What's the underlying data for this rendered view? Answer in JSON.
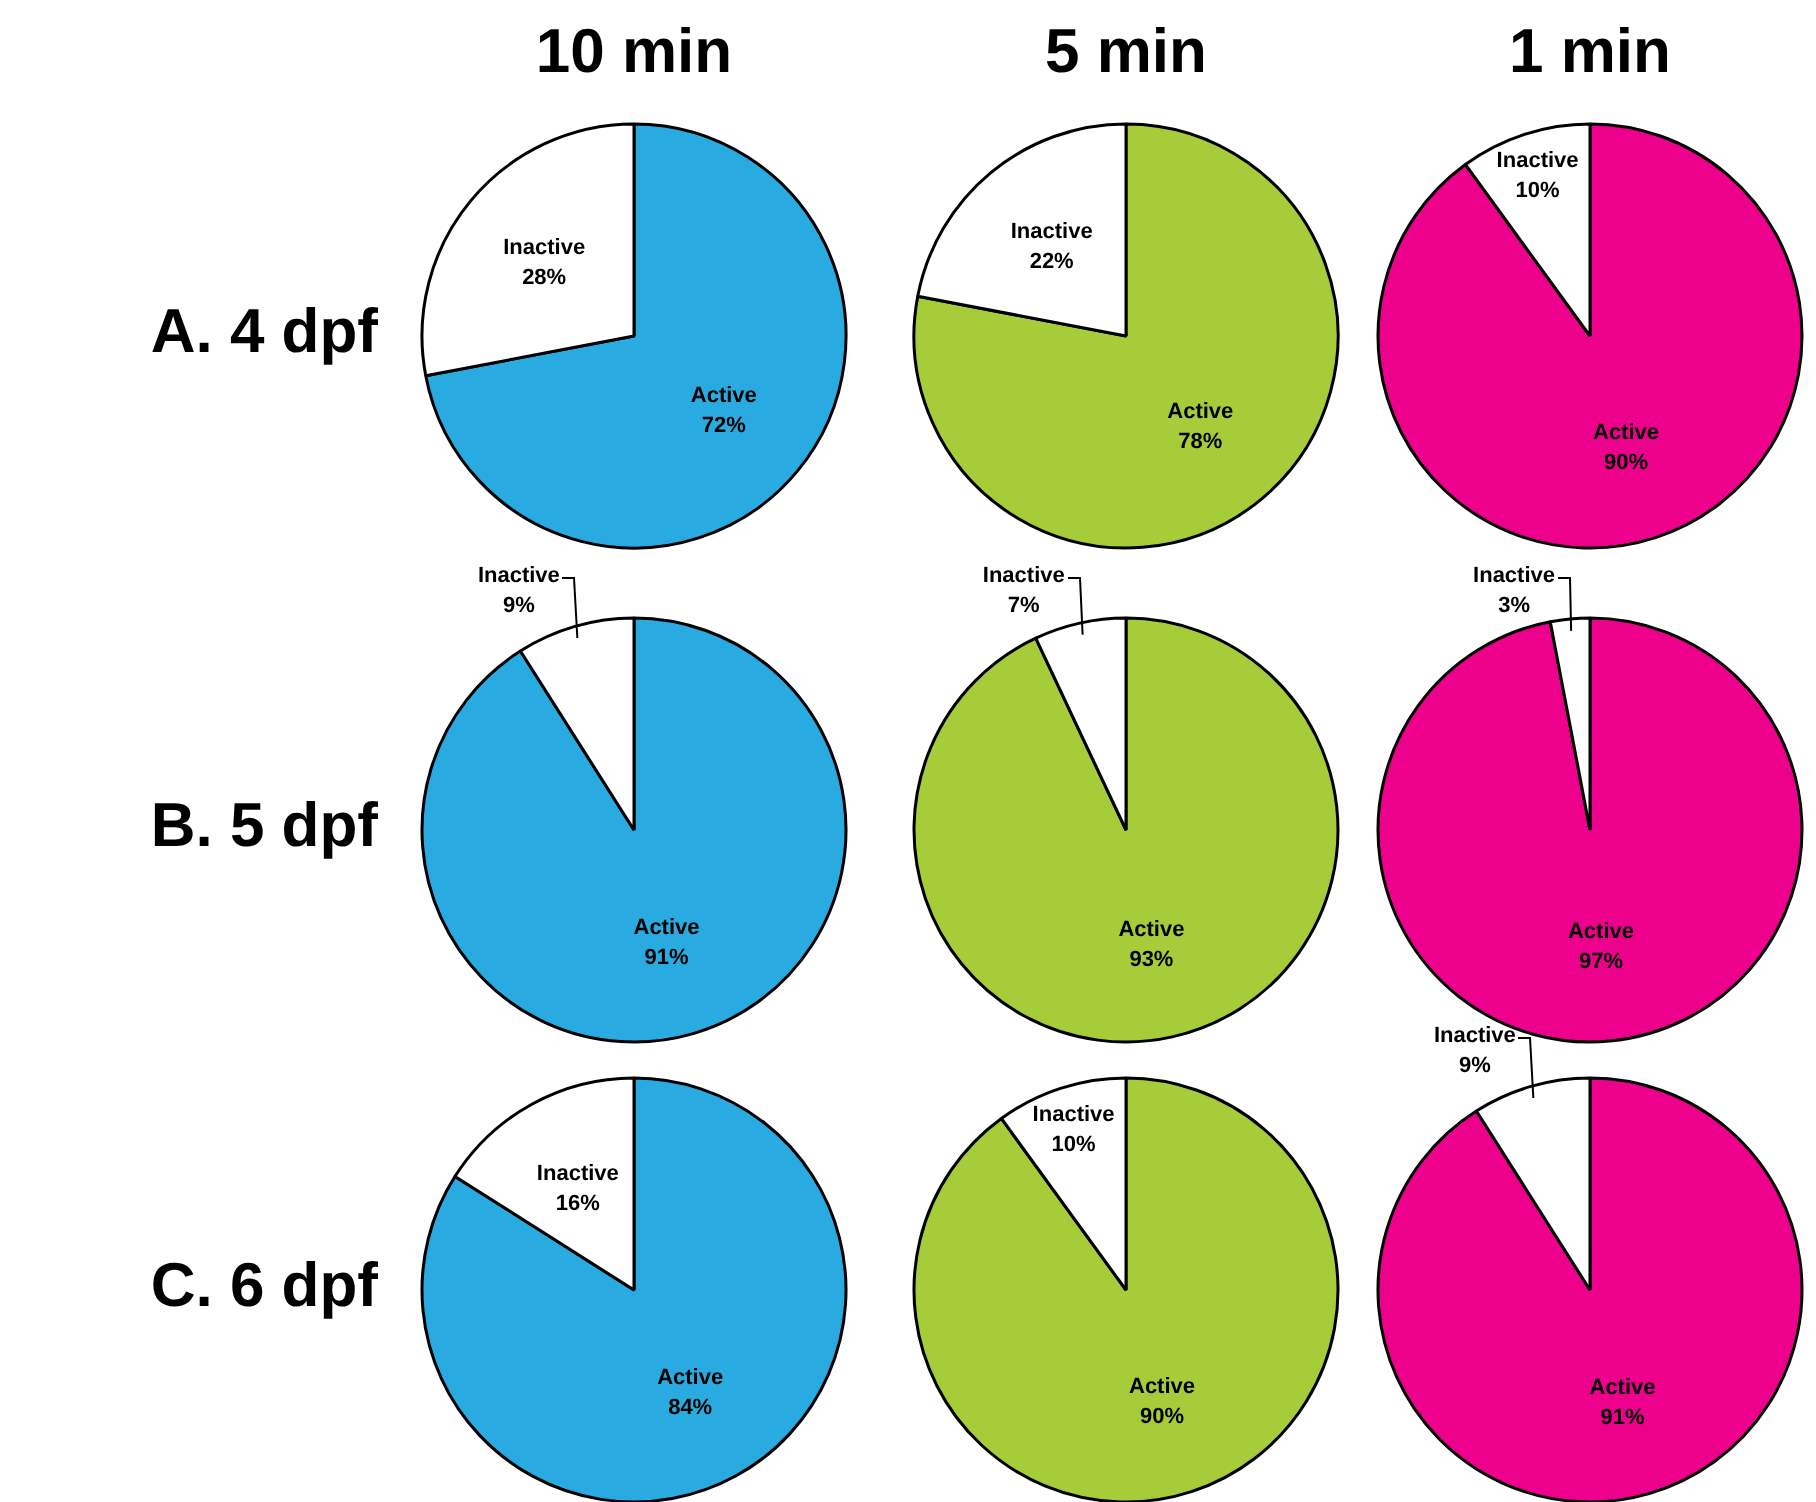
{
  "chart_data": [
    {
      "type": "pie",
      "title": "10 min",
      "ylabel": "A. 4 dpf",
      "categories": [
        "Active",
        "Inactive"
      ],
      "values": [
        72,
        28
      ],
      "colors": [
        "#29abe2",
        "#ffffff"
      ],
      "value_labels": [
        "72%",
        "28%"
      ]
    },
    {
      "type": "pie",
      "title": "5 min",
      "categories": [
        "Active",
        "Inactive"
      ],
      "values": [
        78,
        22
      ],
      "colors": [
        "#a6cc3a",
        "#ffffff"
      ],
      "value_labels": [
        "78%",
        "22%"
      ]
    },
    {
      "type": "pie",
      "title": "1 min",
      "categories": [
        "Active",
        "Inactive"
      ],
      "values": [
        90,
        10
      ],
      "colors": [
        "#ec008c",
        "#ffffff"
      ],
      "value_labels": [
        "90%",
        "10%"
      ]
    },
    {
      "type": "pie",
      "ylabel": "B. 5 dpf",
      "categories": [
        "Active",
        "Inactive"
      ],
      "values": [
        91,
        9
      ],
      "colors": [
        "#29abe2",
        "#ffffff"
      ],
      "value_labels": [
        "91%",
        "9%"
      ]
    },
    {
      "type": "pie",
      "categories": [
        "Active",
        "Inactive"
      ],
      "values": [
        93,
        7
      ],
      "colors": [
        "#a6cc3a",
        "#ffffff"
      ],
      "value_labels": [
        "93%",
        "7%"
      ]
    },
    {
      "type": "pie",
      "categories": [
        "Active",
        "Inactive"
      ],
      "values": [
        97,
        3
      ],
      "colors": [
        "#ec008c",
        "#ffffff"
      ],
      "value_labels": [
        "97%",
        "3%"
      ]
    },
    {
      "type": "pie",
      "ylabel": "C. 6 dpf",
      "categories": [
        "Active",
        "Inactive"
      ],
      "values": [
        84,
        16
      ],
      "colors": [
        "#29abe2",
        "#ffffff"
      ],
      "value_labels": [
        "84%",
        "16%"
      ]
    },
    {
      "type": "pie",
      "categories": [
        "Active",
        "Inactive"
      ],
      "values": [
        90,
        10
      ],
      "colors": [
        "#a6cc3a",
        "#ffffff"
      ],
      "value_labels": [
        "90%",
        "10%"
      ]
    },
    {
      "type": "pie",
      "categories": [
        "Active",
        "Inactive"
      ],
      "values": [
        91,
        9
      ],
      "colors": [
        "#ec008c",
        "#ffffff"
      ],
      "value_labels": [
        "91%",
        "9%"
      ]
    }
  ]
}
